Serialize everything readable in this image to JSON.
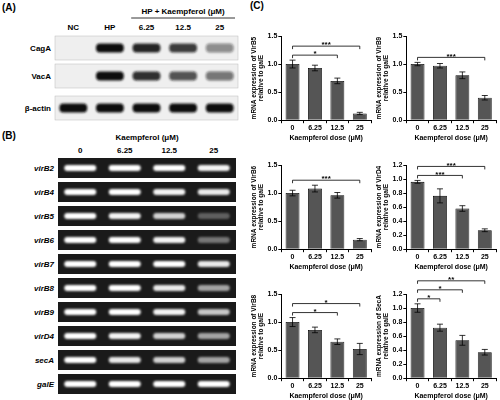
{
  "panel_labels": [
    "(A)",
    "(B)",
    "(C)"
  ],
  "blot_a": {
    "lanes_top": [
      "NC",
      "HP"
    ],
    "group": {
      "label": "HP + Kaempferol (μM)",
      "lanes": [
        "6.25",
        "12.5",
        "25"
      ]
    },
    "rows": [
      {
        "label": "CagA",
        "bands": [
          0,
          1,
          0.9,
          0.8,
          0.45
        ]
      },
      {
        "label": "VacA",
        "bands": [
          0,
          1,
          0.85,
          0.7,
          0.55
        ]
      },
      {
        "label": "β-actin",
        "bands": [
          1,
          1,
          1,
          1,
          1
        ]
      }
    ]
  },
  "blot_b": {
    "header": "Kaempferol (μM)",
    "lanes": [
      "0",
      "6.25",
      "12.5",
      "25"
    ],
    "rows": [
      {
        "label": "virB2",
        "bands": [
          1,
          1,
          1,
          0.95
        ]
      },
      {
        "label": "virB4",
        "bands": [
          1,
          1,
          0.95,
          0.9
        ]
      },
      {
        "label": "virB5",
        "bands": [
          1,
          0.95,
          0.8,
          0.3
        ]
      },
      {
        "label": "virB6",
        "bands": [
          1,
          1,
          0.95,
          0.4
        ]
      },
      {
        "label": "virB7",
        "bands": [
          1,
          1,
          1,
          0.9
        ]
      },
      {
        "label": "virB8",
        "bands": [
          1,
          1,
          0.9,
          0.6
        ]
      },
      {
        "label": "virB9",
        "bands": [
          1,
          1,
          0.95,
          0.75
        ]
      },
      {
        "label": "virD4",
        "bands": [
          1,
          0.95,
          0.8,
          0.6
        ]
      },
      {
        "label": "secA",
        "bands": [
          1,
          0.9,
          0.8,
          0.6
        ]
      },
      {
        "label": "galE",
        "bands": [
          1,
          1,
          1,
          1
        ]
      }
    ]
  },
  "chart_data": [
    {
      "type": "bar",
      "ylabel": [
        "mRNA expression of VirB5",
        "relative to galE"
      ],
      "xlabel": "Kaempferol dose (μM)",
      "categories": [
        "0",
        "6.25",
        "12.5",
        "25"
      ],
      "values": [
        1.0,
        0.93,
        0.7,
        0.12
      ],
      "errors": [
        0.07,
        0.05,
        0.05,
        0.02
      ],
      "color": "#555555",
      "ylim": [
        0,
        1.5
      ],
      "yticks": [
        {
          "value": 0,
          "label": "0.0"
        },
        0.5,
        {
          "value": 1,
          "label": "1.0"
        },
        1.5
      ],
      "grid": false,
      "significance": [
        {
          "from": "0",
          "to": "12.5",
          "label": "*"
        },
        {
          "from": "0",
          "to": "25",
          "label": "***"
        }
      ]
    },
    {
      "type": "bar",
      "ylabel": [
        "mRNA expression of VirB9",
        "relative to galE"
      ],
      "xlabel": "Kaempferol dose (μM)",
      "categories": [
        "0",
        "6.25",
        "12.5",
        "25"
      ],
      "values": [
        1.0,
        0.97,
        0.8,
        0.4
      ],
      "errors": [
        0.03,
        0.04,
        0.06,
        0.04
      ],
      "color": "#555555",
      "ylim": [
        0,
        1.5
      ],
      "yticks": [
        {
          "value": 0,
          "label": "0.0"
        },
        0.5,
        {
          "value": 1,
          "label": "1.0"
        },
        1.5
      ],
      "grid": false,
      "significance": [
        {
          "from": "0",
          "to": "25",
          "label": "***"
        }
      ]
    },
    {
      "type": "bar",
      "ylabel": [
        "mRNA expression of VirB6",
        "relative to galE"
      ],
      "xlabel": "Kaempferol dose (μM)",
      "categories": [
        "0",
        "6.25",
        "12.5",
        "25"
      ],
      "values": [
        1.0,
        1.08,
        0.96,
        0.17
      ],
      "errors": [
        0.05,
        0.06,
        0.05,
        0.02
      ],
      "color": "#555555",
      "ylim": [
        0,
        1.5
      ],
      "yticks": [
        {
          "value": 0,
          "label": "0.0"
        },
        0.5,
        {
          "value": 1,
          "label": "1.0"
        },
        1.5
      ],
      "grid": false,
      "significance": [
        {
          "from": "0",
          "to": "25",
          "label": "***"
        }
      ]
    },
    {
      "type": "bar",
      "ylabel": [
        "mRNA expression of VirD4",
        "relative to galE"
      ],
      "xlabel": "Kaempferol dose (μM)",
      "categories": [
        "0",
        "6.25",
        "12.5",
        "25"
      ],
      "values": [
        0.96,
        0.76,
        0.58,
        0.27
      ],
      "errors": [
        0.02,
        0.1,
        0.04,
        0.02
      ],
      "color": "#555555",
      "ylim": [
        0,
        1.2
      ],
      "yticks": [
        {
          "value": 0,
          "label": "0.0"
        },
        0.2,
        0.4,
        0.6,
        0.8,
        {
          "value": 1,
          "label": "1.0"
        },
        1.2
      ],
      "grid": false,
      "significance": [
        {
          "from": "0",
          "to": "12.5",
          "label": "***"
        },
        {
          "from": "0",
          "to": "25",
          "label": "***"
        }
      ]
    },
    {
      "type": "bar",
      "ylabel": [
        "mRNA expression of VirB8",
        "relative to galE"
      ],
      "xlabel": "Kaempferol dose (μM)",
      "categories": [
        "0",
        "6.25",
        "12.5",
        "25"
      ],
      "values": [
        1.0,
        0.86,
        0.65,
        0.52
      ],
      "errors": [
        0.08,
        0.05,
        0.05,
        0.1
      ],
      "color": "#555555",
      "ylim": [
        0,
        1.5
      ],
      "yticks": [
        {
          "value": 0,
          "label": "0.0"
        },
        0.5,
        {
          "value": 1,
          "label": "1.0"
        },
        1.5
      ],
      "grid": false,
      "significance": [
        {
          "from": "0",
          "to": "12.5",
          "label": "*"
        },
        {
          "from": "0",
          "to": "25",
          "label": "*"
        }
      ]
    },
    {
      "type": "bar",
      "ylabel": [
        "mRNA expression of SecA",
        "relative to galE"
      ],
      "xlabel": "Kaempferol dose (μM)",
      "categories": [
        "0",
        "6.25",
        "12.5",
        "25"
      ],
      "values": [
        1.0,
        0.72,
        0.54,
        0.37
      ],
      "errors": [
        0.06,
        0.05,
        0.07,
        0.04
      ],
      "color": "#555555",
      "ylim": [
        0,
        1.2
      ],
      "yticks": [
        {
          "value": 0,
          "label": "0.0"
        },
        0.2,
        0.4,
        0.6,
        0.8,
        {
          "value": 1,
          "label": "1.0"
        },
        1.2
      ],
      "grid": false,
      "significance": [
        {
          "from": "0",
          "to": "6.25",
          "label": "*"
        },
        {
          "from": "0",
          "to": "12.5",
          "label": "*"
        },
        {
          "from": "0",
          "to": "25",
          "label": "**"
        }
      ]
    }
  ]
}
